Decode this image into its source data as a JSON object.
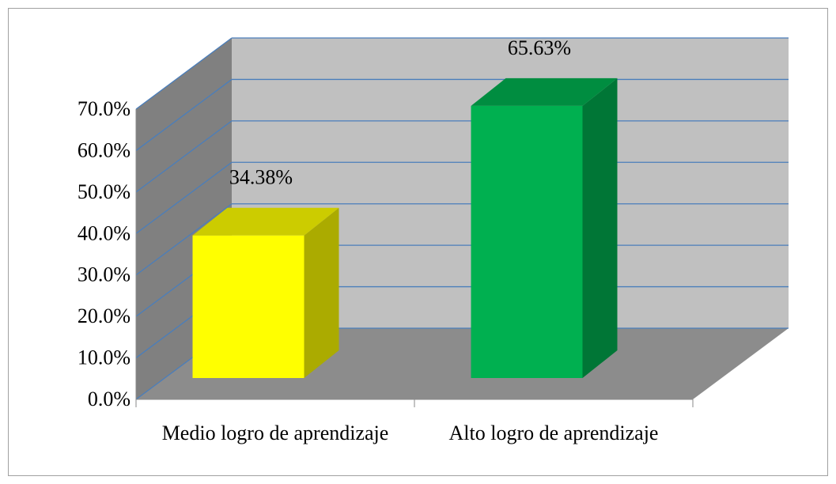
{
  "chart_data": {
    "type": "bar3d",
    "categories": [
      "Medio logro de aprendizaje",
      "Alto logro de aprendizaje"
    ],
    "values": [
      34.38,
      65.63
    ],
    "value_labels": [
      "34.38%",
      "65.63%"
    ],
    "colors": [
      "#ffff00",
      "#00b050"
    ],
    "ylim": [
      0,
      70
    ],
    "yticks": [
      {
        "value": 0,
        "label": "0.0%"
      },
      {
        "value": 10,
        "label": "10.0%"
      },
      {
        "value": 20,
        "label": "20.0%"
      },
      {
        "value": 30,
        "label": "30.0%"
      },
      {
        "value": 40,
        "label": "40.0%"
      },
      {
        "value": 50,
        "label": "50.0%"
      },
      {
        "value": 60,
        "label": "60.0%"
      },
      {
        "value": 70,
        "label": "70.0%"
      }
    ],
    "grid": true
  }
}
